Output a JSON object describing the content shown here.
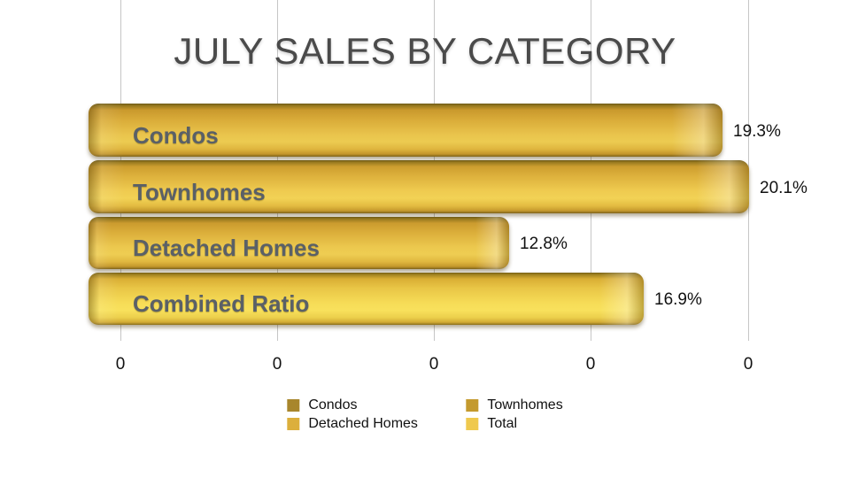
{
  "chart_data": {
    "type": "bar",
    "orientation": "horizontal",
    "title": "JULY SALES BY CATEGORY",
    "categories": [
      "Condos",
      "Townhomes",
      "Detached Homes",
      "Combined Ratio"
    ],
    "values": [
      19.3,
      20.1,
      12.8,
      16.9
    ],
    "value_labels": [
      "19.3%",
      "20.1%",
      "12.8%",
      "16.9%"
    ],
    "x_tick_labels": [
      "0",
      "0",
      "0",
      "0",
      "0"
    ],
    "xlim": [
      0,
      20.1
    ],
    "grid": true,
    "legend_position": "bottom",
    "legend": [
      {
        "label": "Condos",
        "color": "#a8862c"
      },
      {
        "label": "Townhomes",
        "color": "#c49a2e"
      },
      {
        "label": "Detached Homes",
        "color": "#dcaf3c"
      },
      {
        "label": "Total",
        "color": "#efc94e"
      }
    ],
    "colors": {
      "bar_gold_dark_edge": "#6e5916",
      "bar_gold_mid": "#e9c34c",
      "bar_total_bright": "#f6dc57",
      "gridline": "#c6c6c6",
      "title_text": "#4a4a4a",
      "category_label_text": "#5a6067",
      "value_text": "#111111"
    }
  }
}
